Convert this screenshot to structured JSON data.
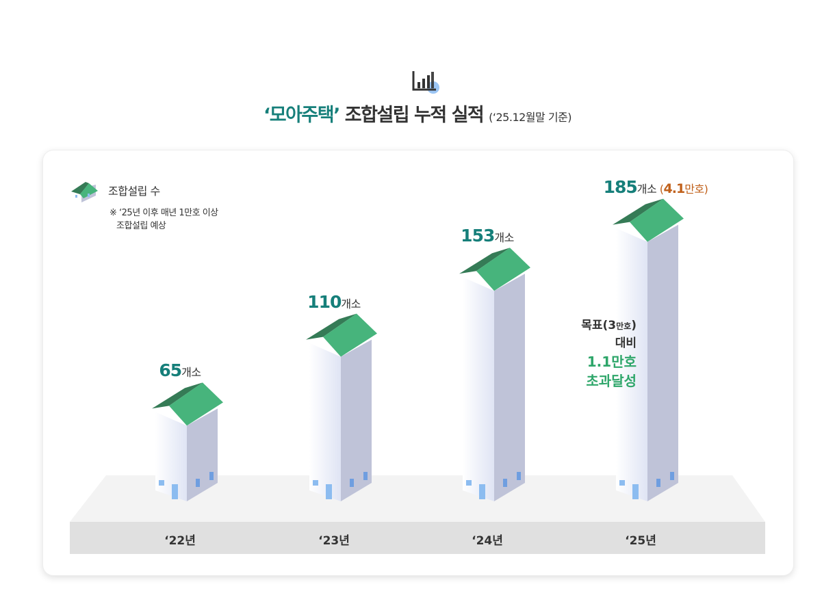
{
  "title": {
    "highlight": "‘모아주택’",
    "main": " 조합설립 누적 실적 ",
    "sub": "(‘25.12월말 기준)"
  },
  "legend": {
    "label": "조합설립 수",
    "note_line1": "※ ‘25년 이후 매년 1만호 이상",
    "note_line2": "조합설립 예상"
  },
  "target_note": {
    "line1": "목표(3",
    "line1_small": "만호",
    "line1_end": ")",
    "line2": "대비",
    "line3": "1.1만호",
    "line4": "초과달성"
  },
  "colors": {
    "teal": "#167f7a",
    "roof_light": "#47b47c",
    "roof_dark": "#357b56",
    "wall_side": "#bfc3d8",
    "orange": "#c0601a"
  },
  "chart_data": {
    "type": "bar",
    "title": "‘모아주택’ 조합설립 누적 실적 (‘25.12월말 기준)",
    "categories": [
      "‘22년",
      "‘23년",
      "‘24년",
      "‘25년"
    ],
    "values": [
      65,
      110,
      153,
      185
    ],
    "unit": "개소",
    "value_labels": [
      "65",
      "110",
      "153",
      "185"
    ],
    "extra_label": {
      "index": 3,
      "open": "(",
      "value": "4.1",
      "unit": "만호",
      "close": ")"
    },
    "legend": "top-left"
  }
}
